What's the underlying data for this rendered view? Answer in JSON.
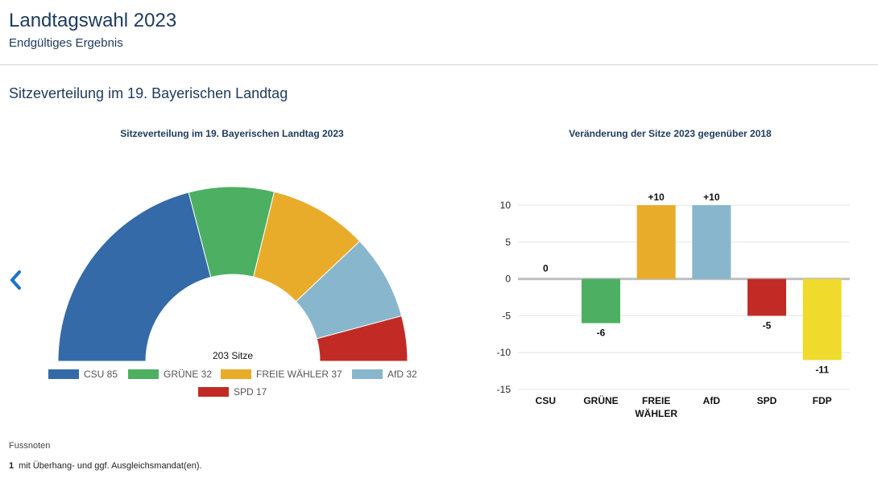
{
  "header": {
    "title": "Landtagswahl 2023",
    "subtitle": "Endgültiges Ergebnis"
  },
  "section": {
    "title": "Sitzeverteilung im 19. Bayerischen Landtag"
  },
  "navigation": {
    "prev_icon": "chevron-left-icon"
  },
  "footnotes": {
    "heading": "Fussnoten",
    "items": [
      {
        "number": "1",
        "text": "mit Überhang- und ggf. Ausgleichsmandat(en)."
      }
    ]
  },
  "chart_data": [
    {
      "type": "pie",
      "variant": "semicircle",
      "title": "Sitzeverteilung im 19. Bayerischen Landtag 2023",
      "center_label": "203 Sitze",
      "categories": [
        "CSU",
        "GRÜNE",
        "FREIE WÄHLER",
        "AfD",
        "SPD"
      ],
      "values": [
        85,
        32,
        37,
        32,
        17
      ],
      "colors": [
        "#356aa8",
        "#4caf61",
        "#e9ac2a",
        "#88b6cc",
        "#c22b25"
      ],
      "legend": "bottom"
    },
    {
      "type": "bar",
      "title": "Veränderung der Sitze 2023 gegenüber 2018",
      "categories": [
        "CSU",
        "GRÜNE",
        "FREIE WÄHLER",
        "AfD",
        "SPD",
        "FDP"
      ],
      "values": [
        0,
        -6,
        10,
        10,
        -5,
        -11
      ],
      "value_labels": [
        "0",
        "-6",
        "+10",
        "+10",
        "-5",
        "-11"
      ],
      "colors": [
        "#356aa8",
        "#4caf61",
        "#e9ac2a",
        "#88b6cc",
        "#c22b25",
        "#f0da2c"
      ],
      "ylim": [
        -15,
        10
      ],
      "yticks": [
        10,
        5,
        0,
        -5,
        -10,
        -15
      ],
      "grid": true
    }
  ]
}
